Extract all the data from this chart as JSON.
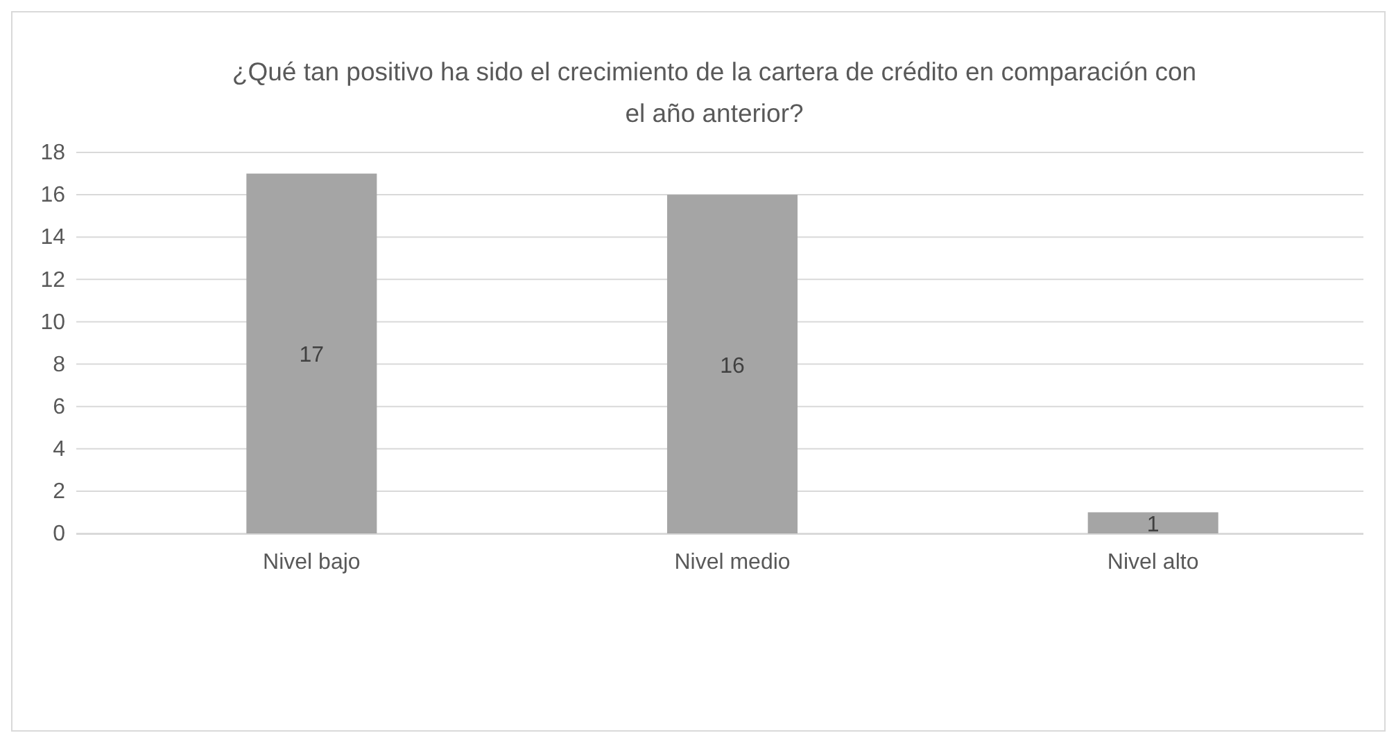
{
  "chart_data": {
    "type": "bar",
    "title": "¿Qué tan positivo ha sido el crecimiento de la cartera de crédito en comparación con el año anterior?",
    "categories": [
      "Nivel bajo",
      "Nivel medio",
      "Nivel alto"
    ],
    "values": [
      17,
      16,
      1
    ],
    "color": "#a5a5a5",
    "ylim": [
      0,
      18
    ],
    "yticks": [
      0,
      2,
      4,
      6,
      8,
      10,
      12,
      14,
      16,
      18
    ],
    "grid": "y",
    "data_labels": true
  }
}
